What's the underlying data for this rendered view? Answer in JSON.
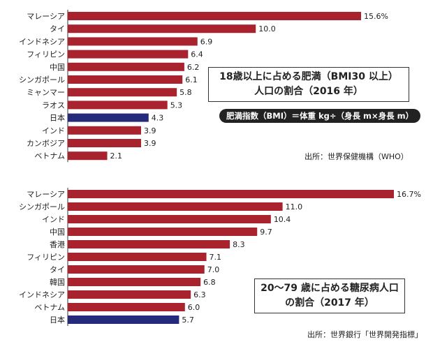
{
  "colors": {
    "bar": "#a8232e",
    "highlight": "#262a7a",
    "axis": "#333333"
  },
  "chart_data": [
    {
      "type": "bar",
      "orientation": "horizontal",
      "title": [
        "18歳以上に占める肥満（BMI30 以上）",
        "人口の割合（2016 年）"
      ],
      "note": "肥満指数（BMI）＝体重 kg÷（身長 m×身長 m）",
      "source": "出所：世界保健機構（WHO）",
      "xlim": [
        0,
        16.5
      ],
      "highlight": "日本",
      "categories": [
        "マレーシア",
        "タイ",
        "インドネシア",
        "フィリピン",
        "中国",
        "シンガポール",
        "ミャンマー",
        "ラオス",
        "日本",
        "インド",
        "カンボジア",
        "ベトナム"
      ],
      "values": [
        15.6,
        10.0,
        6.9,
        6.4,
        6.2,
        6.1,
        5.8,
        5.3,
        4.3,
        3.9,
        3.9,
        2.1
      ],
      "labels": [
        "15.6%",
        "10.0",
        "6.9",
        "6.4",
        "6.2",
        "6.1",
        "5.8",
        "5.3",
        "4.3",
        "3.9",
        "3.9",
        "2.1"
      ]
    },
    {
      "type": "bar",
      "orientation": "horizontal",
      "title": [
        "20～79 歳に占める糖尿病人口",
        "の割合（2017 年）"
      ],
      "source": "出所：世界銀行「世界開発指標」",
      "xlim": [
        0,
        17.7
      ],
      "highlight": "日本",
      "categories": [
        "マレーシア",
        "シンガポール",
        "インド",
        "中国",
        "香港",
        "フィリピン",
        "タイ",
        "韓国",
        "インドネシア",
        "ベトナム",
        "日本"
      ],
      "values": [
        16.7,
        11.0,
        10.4,
        9.7,
        8.3,
        7.1,
        7.0,
        6.8,
        6.3,
        6.0,
        5.7
      ],
      "labels": [
        "16.7%",
        "11.0",
        "10.4",
        "9.7",
        "8.3",
        "7.1",
        "7.0",
        "6.8",
        "6.3",
        "6.0",
        "5.7"
      ]
    }
  ]
}
